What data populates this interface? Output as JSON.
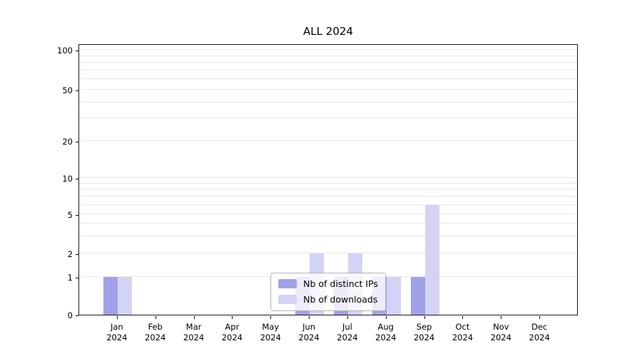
{
  "figure": {
    "title": "ALL 2024"
  },
  "chart_data": {
    "type": "bar",
    "title": "ALL 2024",
    "yscale": "symlog",
    "grid": true,
    "legend_position": "lower center",
    "ylim": [
      0,
      100
    ],
    "yticks": [
      0,
      1,
      2,
      5,
      10,
      20,
      50,
      100
    ],
    "minor_gridline_values": [
      1,
      2,
      3,
      4,
      5,
      6,
      7,
      8,
      9,
      10,
      20,
      30,
      40,
      50,
      60,
      70,
      80,
      90,
      100
    ],
    "categories": [
      "Jan 2024",
      "Feb 2024",
      "Mar 2024",
      "Apr 2024",
      "May 2024",
      "Jun 2024",
      "Jul 2024",
      "Aug 2024",
      "Sep 2024",
      "Oct 2024",
      "Nov 2024",
      "Dec 2024"
    ],
    "month_labels": [
      "Jan",
      "Feb",
      "Mar",
      "Apr",
      "May",
      "Jun",
      "Jul",
      "Aug",
      "Sep",
      "Oct",
      "Nov",
      "Dec"
    ],
    "year_label": "2024",
    "series": [
      {
        "name": "Nb of distinct IPs",
        "color": "#a1a1e8",
        "values": [
          1,
          0,
          0,
          0,
          0,
          1,
          1,
          1,
          1,
          0,
          0,
          0
        ]
      },
      {
        "name": "Nb of downloads",
        "color": "#d3d3f5",
        "values": [
          1,
          0,
          0,
          0,
          0,
          2,
          2,
          1,
          6,
          0,
          0,
          0
        ]
      }
    ]
  }
}
